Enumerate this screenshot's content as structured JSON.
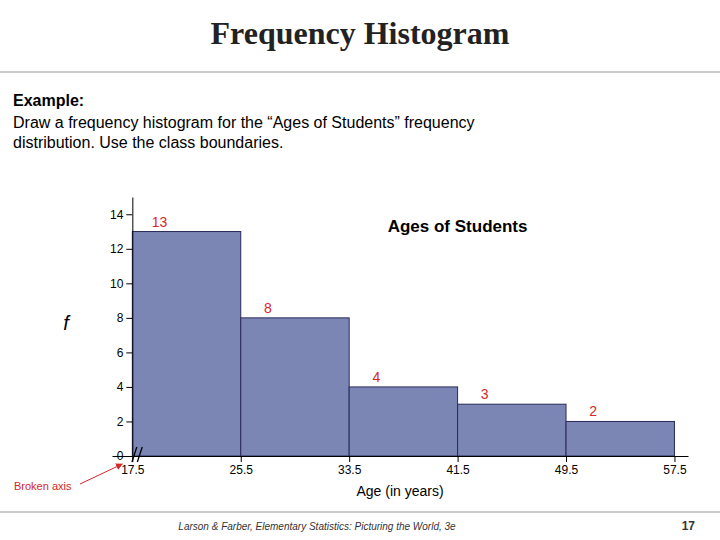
{
  "chart_data": {
    "type": "histogram",
    "title": "Frequency Histogram",
    "subtitle": "Ages of Students",
    "x_label": "Age (in years)",
    "y_label": "f",
    "bins": [
      17.5,
      25.5,
      33.5,
      41.5,
      49.5,
      57.5
    ],
    "values": [
      13,
      8,
      4,
      3,
      2
    ],
    "color": "#7b86b5",
    "xlim": [
      16.0,
      58.5
    ],
    "xticks": [
      17.5,
      25.5,
      33.5,
      41.5,
      49.5,
      57.5
    ],
    "ylim": [
      0,
      15
    ],
    "yticks": [
      0,
      2,
      4,
      6,
      8,
      10,
      12,
      14
    ],
    "data_labels": true,
    "grid": false,
    "annotations": [
      "Example:",
      "Draw a frequency histogram for the “Ages of Students” frequency",
      "distribution.  Use the class boundaries.",
      "Broken axis",
      "Larson & Farber,  Elementary Statistics: Picturing the World,  3e",
      "17"
    ]
  }
}
